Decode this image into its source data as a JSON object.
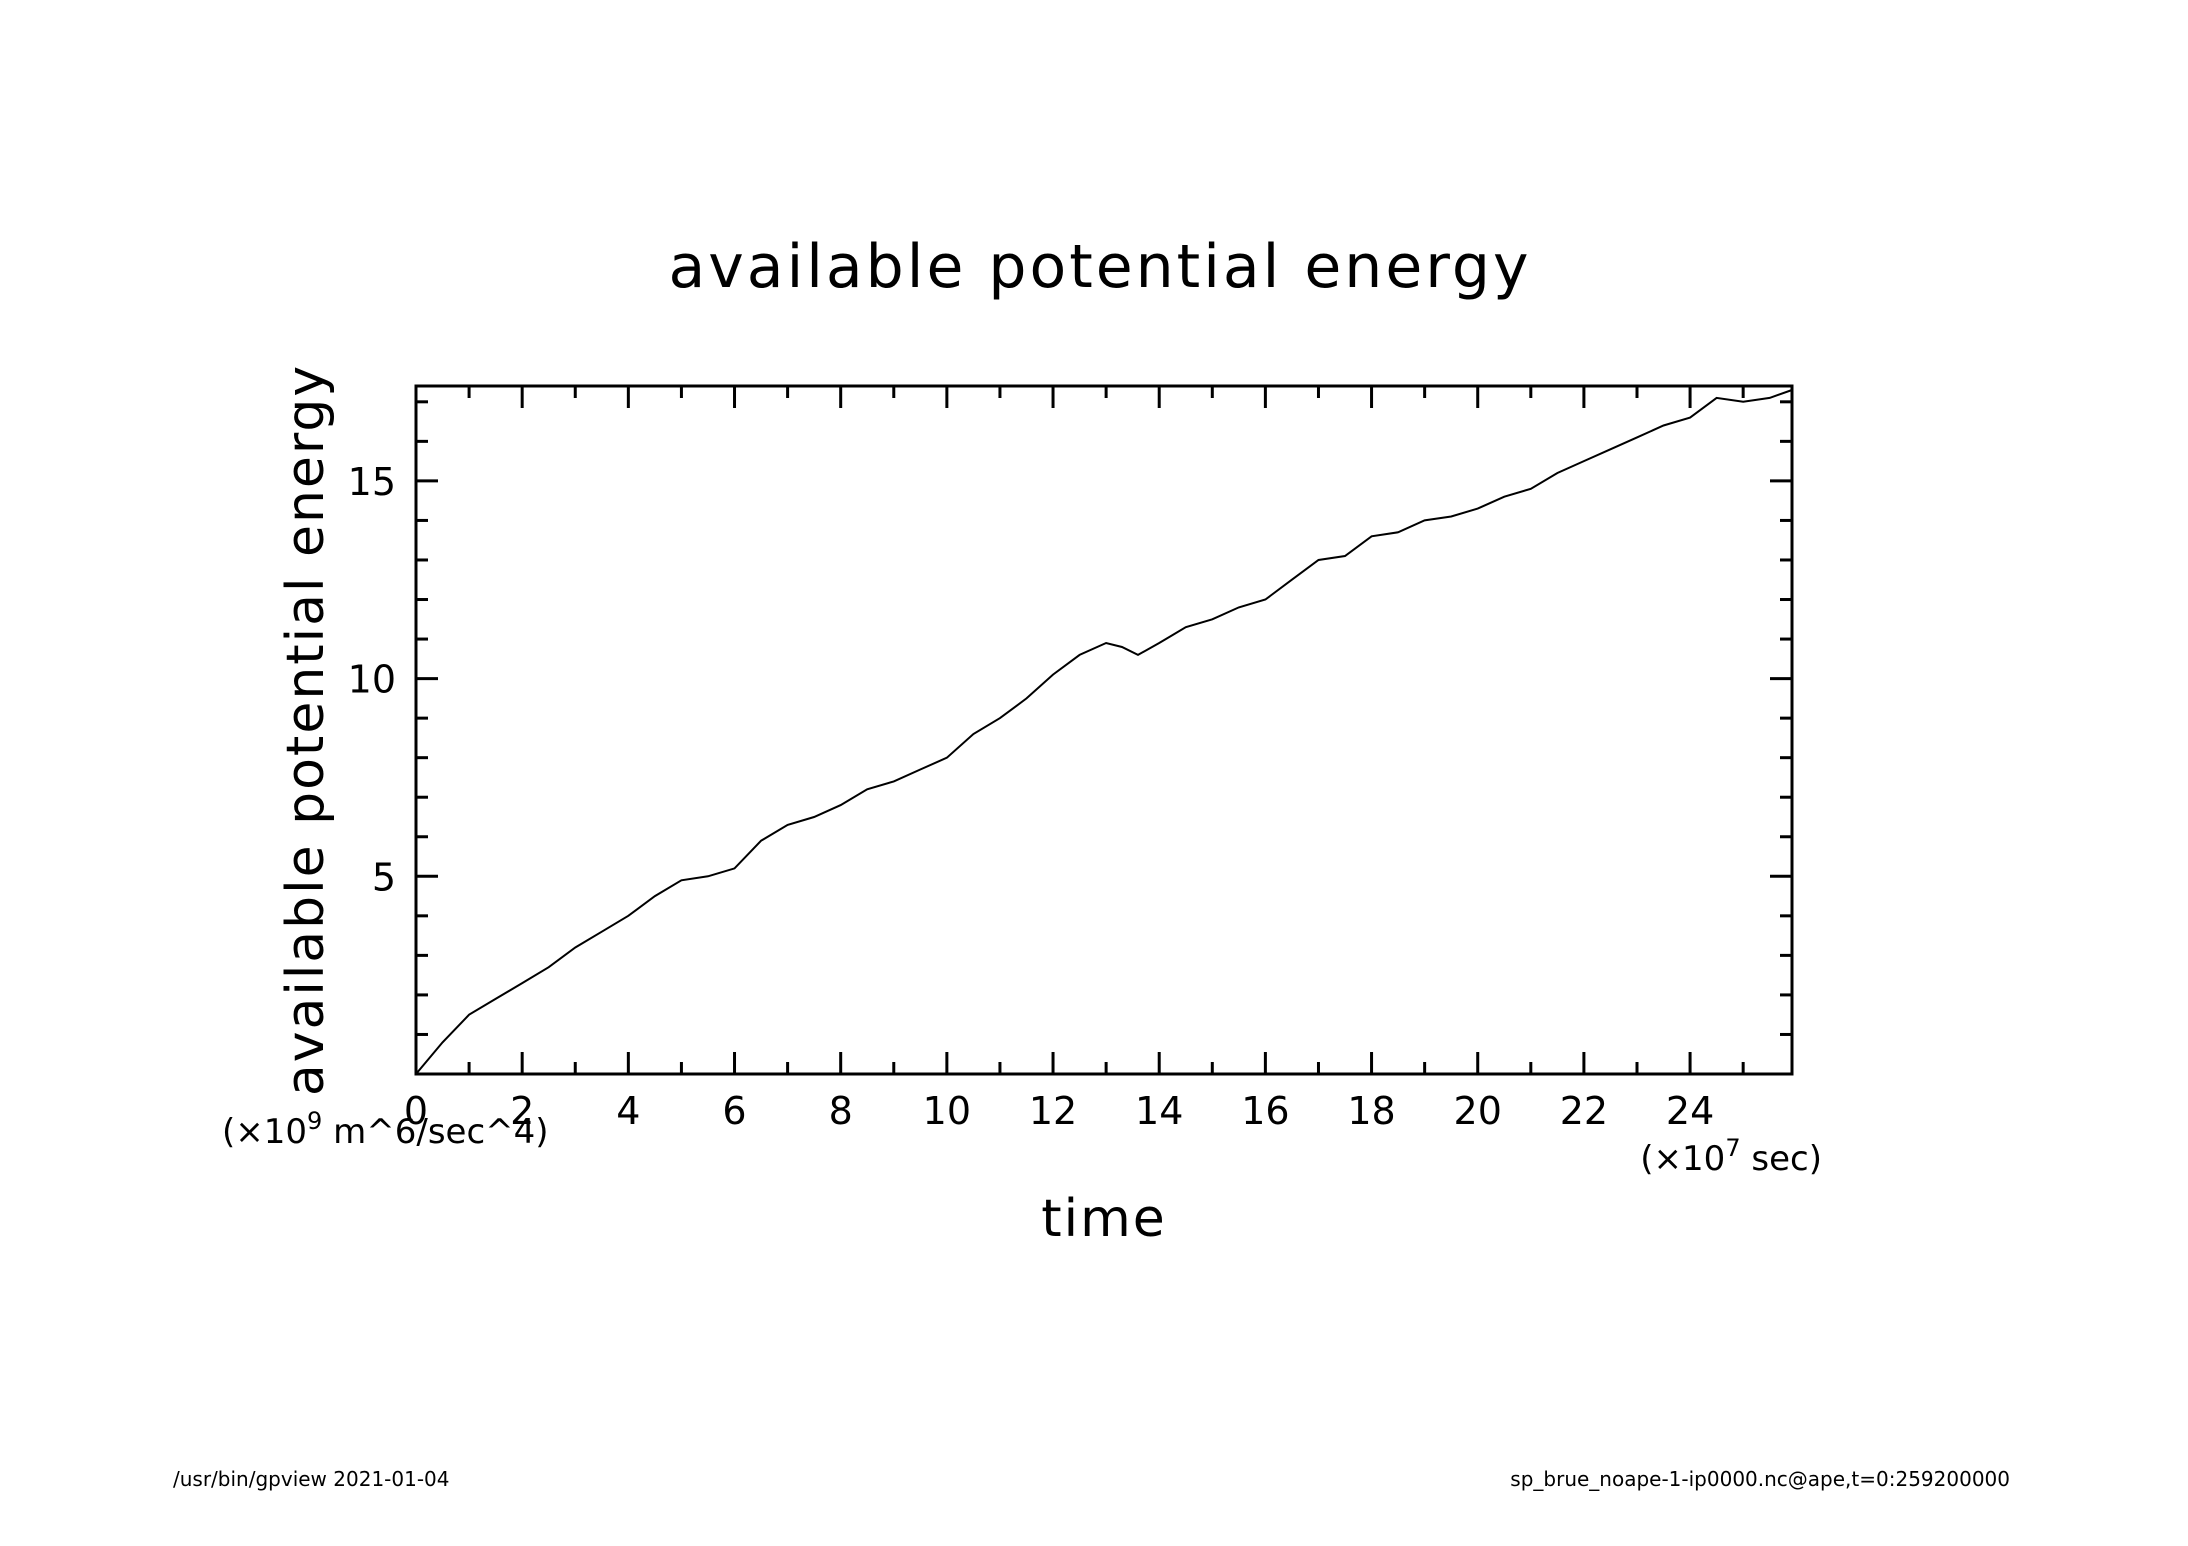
{
  "chart_data": {
    "type": "line",
    "title": "available potential energy",
    "xlabel": "time",
    "ylabel": "available potential energy",
    "x_unit_prefix": "(×10",
    "x_unit_exp": "7",
    "x_unit_suffix": " sec)",
    "y_unit_prefix": "(×10",
    "y_unit_exp": "9",
    "y_unit_suffix": " m^6/sec^4)",
    "xlim": [
      0,
      25.92
    ],
    "ylim": [
      0,
      17.4
    ],
    "x_ticks": [
      0,
      2,
      4,
      6,
      8,
      10,
      12,
      14,
      16,
      18,
      20,
      22,
      24
    ],
    "y_ticks": [
      5,
      10,
      15
    ],
    "grid": false,
    "series": [
      {
        "x": [
          0,
          0.5,
          1,
          1.5,
          2,
          2.5,
          3,
          3.5,
          4,
          4.5,
          5,
          5.5,
          6,
          6.5,
          7,
          7.5,
          8,
          8.5,
          9,
          9.5,
          10,
          10.5,
          11,
          11.5,
          12,
          12.5,
          13,
          13.3,
          13.6,
          14,
          14.5,
          15,
          15.5,
          16,
          16.5,
          17,
          17.5,
          18,
          18.5,
          19,
          19.5,
          20,
          20.5,
          21,
          21.5,
          22,
          22.5,
          23,
          23.5,
          24,
          24.5,
          25,
          25.5,
          25.92
        ],
        "y": [
          0.0,
          0.8,
          1.5,
          1.9,
          2.3,
          2.7,
          3.2,
          3.6,
          4.0,
          4.5,
          4.9,
          5.0,
          5.2,
          5.9,
          6.3,
          6.5,
          6.8,
          7.2,
          7.4,
          7.7,
          8.0,
          8.6,
          9.0,
          9.5,
          10.1,
          10.6,
          10.9,
          10.8,
          10.6,
          10.9,
          11.3,
          11.5,
          11.8,
          12.0,
          12.5,
          13.0,
          13.1,
          13.6,
          13.7,
          14.0,
          14.1,
          14.3,
          14.6,
          14.8,
          15.2,
          15.5,
          15.8,
          16.1,
          16.4,
          16.6,
          17.1,
          17.0,
          17.1,
          17.3
        ]
      }
    ]
  },
  "footer": {
    "left_text": "/usr/bin/gpview   2021-01-04",
    "right_text": "sp_brue_noape-1-ip0000.nc@ape,t=0:259200000"
  }
}
